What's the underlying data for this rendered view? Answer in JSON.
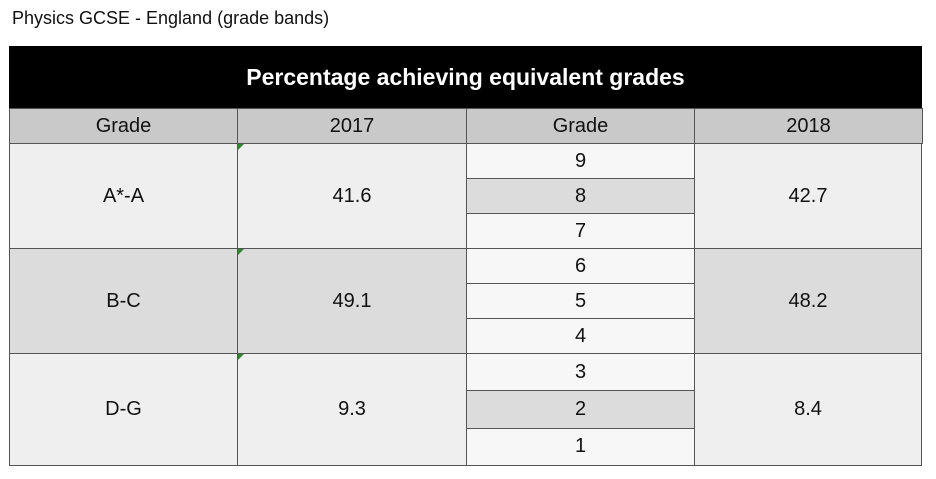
{
  "heading": "Physics GCSE - England (grade bands)",
  "table": {
    "title": "Percentage achieving equivalent grades",
    "columns": [
      "Grade",
      "2017",
      "Grade",
      "2018"
    ],
    "rows": [
      {
        "band": "A*-A",
        "value_2017": 41.6,
        "grades": [
          9,
          8,
          7
        ],
        "value_2018": 42.7
      },
      {
        "band": "B-C",
        "value_2017": 49.1,
        "grades": [
          6,
          5,
          4
        ],
        "value_2018": 48.2
      },
      {
        "band": "D-G",
        "value_2017": 9.3,
        "grades": [
          3,
          2,
          1
        ],
        "value_2018": 8.4
      }
    ]
  }
}
